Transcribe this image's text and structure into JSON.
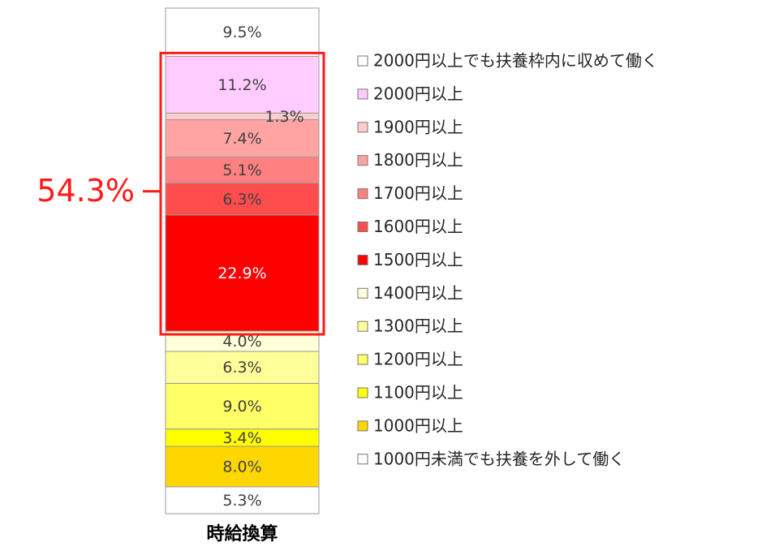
{
  "chart_data": {
    "type": "bar",
    "stacked": true,
    "categories": [
      "時給換算"
    ],
    "series": [
      {
        "name": "1000円未満でも扶養を外して働く",
        "values": [
          5.3
        ],
        "label": "5.3%",
        "color": "#ffffff",
        "label_color": "#404040"
      },
      {
        "name": "1000円以上",
        "values": [
          8.0
        ],
        "label": "8.0%",
        "color": "#ffd700",
        "label_color": "#404040"
      },
      {
        "name": "1100円以上",
        "values": [
          3.4
        ],
        "label": "3.4%",
        "color": "#ffff00",
        "label_color": "#404040"
      },
      {
        "name": "1200円以上",
        "values": [
          9.0
        ],
        "label": "9.0%",
        "color": "#ffff66",
        "label_color": "#404040"
      },
      {
        "name": "1300円以上",
        "values": [
          6.3
        ],
        "label": "6.3%",
        "color": "#ffff99",
        "label_color": "#404040"
      },
      {
        "name": "1400円以上",
        "values": [
          4.0
        ],
        "label": "4.0%",
        "color": "#ffffd9",
        "label_color": "#404040"
      },
      {
        "name": "1500円以上",
        "values": [
          22.9
        ],
        "label": "22.9%",
        "color": "#ff0000",
        "label_color": "#ffffff"
      },
      {
        "name": "1600円以上",
        "values": [
          6.3
        ],
        "label": "6.3%",
        "color": "#ff4d4d",
        "label_color": "#404040"
      },
      {
        "name": "1700円以上",
        "values": [
          5.1
        ],
        "label": "5.1%",
        "color": "#ff8080",
        "label_color": "#404040"
      },
      {
        "name": "1800円以上",
        "values": [
          7.4
        ],
        "label": "7.4%",
        "color": "#ffa3a3",
        "label_color": "#404040"
      },
      {
        "name": "1900円以上",
        "values": [
          1.3
        ],
        "label": "1.3%",
        "color": "#ffcccc",
        "label_color": "#404040"
      },
      {
        "name": "2000円以上",
        "values": [
          11.2
        ],
        "label": "11.2%",
        "color": "#ffccff",
        "label_color": "#404040"
      },
      {
        "name": "2000円以上でも扶養枠内に収めて働く",
        "values": [
          9.5
        ],
        "label": "9.5%",
        "color": "#ffffff",
        "label_color": "#404040"
      }
    ],
    "legend_order": [
      "2000円以上でも扶養枠内に収めて働く",
      "2000円以上",
      "1900円以上",
      "1800円以上",
      "1700円以上",
      "1600円以上",
      "1500円以上",
      "1400円以上",
      "1300円以上",
      "1200円以上",
      "1100円以上",
      "1000円以上",
      "1000円未満でも扶養を外して働く"
    ],
    "legend_position": "right",
    "callout": {
      "text": "54.3%",
      "color": "#ff1a1a",
      "covers": [
        "1500円以上",
        "1600円以上",
        "1700円以上",
        "1800円以上",
        "1900円以上",
        "2000円以上"
      ]
    },
    "xlabel": "時給換算"
  }
}
